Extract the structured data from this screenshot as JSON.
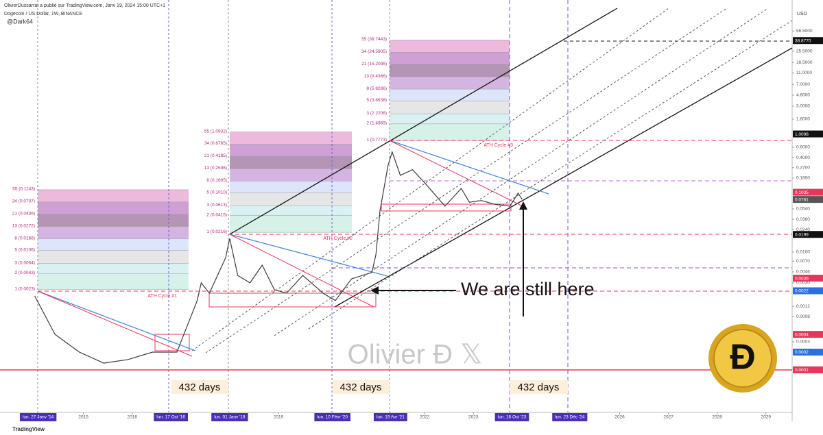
{
  "header": {
    "publisher": "OlivierDussarrat a publié sur TradingView.com, Janv 19, 2024 15:00 UTC+1",
    "author": "@Dark64",
    "footer": "TradingView",
    "watermark": "Olivier Đ 𝕏"
  },
  "chart_data": {
    "type": "line",
    "title": "Dogecoin / US Dollar, 1W, BINANCE",
    "y_unit": "USD",
    "log_scale": true,
    "color": "#3a3a3a",
    "x": [
      "2014-01",
      "2014-06",
      "2014-12",
      "2015-06",
      "2015-12",
      "2016-06",
      "2016-12",
      "2017-05",
      "2017-06",
      "2017-08",
      "2017-12",
      "2018-01",
      "2018-03",
      "2018-06",
      "2018-09",
      "2018-12",
      "2019-03",
      "2019-07",
      "2019-12",
      "2020-03",
      "2020-07",
      "2020-12",
      "2021-01",
      "2021-02",
      "2021-04",
      "2021-05",
      "2021-07",
      "2021-10",
      "2022-01",
      "2022-06",
      "2022-10",
      "2022-12",
      "2023-03",
      "2023-06",
      "2023-10",
      "2023-12",
      "2024-01"
    ],
    "series": [
      {
        "name": "Dogecoin / US Dollar",
        "values": [
          0.0018,
          0.0004,
          0.0002,
          0.00013,
          0.00015,
          0.0002,
          0.0002,
          0.0015,
          0.003,
          0.002,
          0.008,
          0.017,
          0.004,
          0.003,
          0.006,
          0.0023,
          0.002,
          0.004,
          0.002,
          0.0015,
          0.0035,
          0.0045,
          0.009,
          0.05,
          0.3,
          0.5,
          0.2,
          0.25,
          0.15,
          0.06,
          0.12,
          0.07,
          0.075,
          0.065,
          0.06,
          0.1,
          0.0781
        ]
      }
    ],
    "xlim": [
      "2013-04-15",
      "2029-07-15"
    ],
    "xticks": [
      {
        "value": "2014-01-27",
        "label": "lun. 27 Janv '14",
        "highlight": true
      },
      {
        "value": "2015-01-01",
        "label": "2015"
      },
      {
        "value": "2016-01-01",
        "label": "2016"
      },
      {
        "value": "2016-10-17",
        "label": "lun. 17 Oct '16",
        "highlight": true
      },
      {
        "value": "2018-01-01",
        "label": "lun. 01 Janv '18",
        "highlight": true
      },
      {
        "value": "2019-01-01",
        "label": "2019"
      },
      {
        "value": "2020-02-10",
        "label": "lun. 10 Févr '20",
        "highlight": true
      },
      {
        "value": "2021-04-19",
        "label": "lun. 19 Avr '21",
        "highlight": true
      },
      {
        "value": "2022-01-01",
        "label": "2022"
      },
      {
        "value": "2023-01-01",
        "label": "2023"
      },
      {
        "value": "2023-10-16",
        "label": "lun. 16 Oct '23",
        "highlight": true
      },
      {
        "value": "2024-12-23",
        "label": "lun. 23 Déc '24",
        "highlight": true
      },
      {
        "value": "2026-01-01",
        "label": "2026"
      },
      {
        "value": "2027-01-01",
        "label": "2027"
      },
      {
        "value": "2028-01-01",
        "label": "2028"
      },
      {
        "value": "2029-01-01",
        "label": "2029"
      }
    ],
    "ylim": [
      1.75e-05,
      127
    ],
    "yticks": [
      {
        "value": 56.5,
        "label": "56.5000"
      },
      {
        "value": 25.5,
        "label": "25.5000"
      },
      {
        "value": 16.5,
        "label": "16.5000"
      },
      {
        "value": 11,
        "label": "11.0000"
      },
      {
        "value": 7,
        "label": "7.0000"
      },
      {
        "value": 4.6,
        "label": "4.6000"
      },
      {
        "value": 3,
        "label": "3.0000"
      },
      {
        "value": 1.8,
        "label": "1.8000"
      },
      {
        "value": 0.6,
        "label": "0.6000"
      },
      {
        "value": 0.4,
        "label": "0.4000"
      },
      {
        "value": 0.27,
        "label": "0.2700"
      },
      {
        "value": 0.18,
        "label": "0.1800"
      },
      {
        "value": 0.054,
        "label": "0.0540"
      },
      {
        "value": 0.036,
        "label": "0.0360"
      },
      {
        "value": 0.024,
        "label": "0.0240"
      },
      {
        "value": 0.01,
        "label": "0.0100"
      },
      {
        "value": 0.007,
        "label": "0.0070"
      },
      {
        "value": 0.0046,
        "label": "0.0046"
      },
      {
        "value": 0.003,
        "label": "0.0030"
      },
      {
        "value": 0.0012,
        "label": "0.0012"
      },
      {
        "value": 0.0008,
        "label": "0.0008"
      },
      {
        "value": 0.0003,
        "label": "0.0003"
      }
    ],
    "price_tags": [
      {
        "value": 38.877,
        "label": "38.8770",
        "color": "#111111"
      },
      {
        "value": 1.0098,
        "label": "1.0098",
        "color": "#111111"
      },
      {
        "value": 0.1035,
        "label": "0.1035",
        "color": "#e8365a"
      },
      {
        "value": 0.0781,
        "label": "0.0781",
        "color": "#555555"
      },
      {
        "value": 0.0199,
        "label": "0.0199",
        "color": "#111111"
      },
      {
        "value": 0.0036,
        "label": "0.0036",
        "color": "#e8365a"
      },
      {
        "value": 0.0022,
        "label": "0.0022",
        "color": "#2b6fe0"
      },
      {
        "value": 0.0004,
        "label": "0.0004",
        "color": "#e8365a"
      },
      {
        "value": 0.0002,
        "label": "0.0002",
        "color": "#2b6fe0"
      },
      {
        "value": 0.0001,
        "label": "0.0001",
        "color": "#e8365a"
      }
    ],
    "fib_groups": [
      {
        "levels": [
          {
            "value": 0.0023,
            "label": "1 (0.0023)"
          },
          {
            "value": 0.0043,
            "label": "2 (0.0043)"
          },
          {
            "value": 0.0064,
            "label": "3 (0.0064)"
          },
          {
            "value": 0.0106,
            "label": "5 (0.0106)"
          },
          {
            "value": 0.0168,
            "label": "8 (0.0168)"
          },
          {
            "value": 0.0272,
            "label": "13 (0.0272)"
          },
          {
            "value": 0.0436,
            "label": "21 (0.0436)"
          },
          {
            "value": 0.0707,
            "label": "34 (0.0707)"
          },
          {
            "value": 0.1143,
            "label": "55 (0.1143)"
          }
        ]
      },
      {
        "levels": [
          {
            "value": 0.0216,
            "label": "1 (0.0216)"
          },
          {
            "value": 0.0415,
            "label": "2 (0.0415)"
          },
          {
            "value": 0.0613,
            "label": "3 (0.0613)"
          },
          {
            "value": 0.101,
            "label": "5 (0.1010)"
          },
          {
            "value": 0.1605,
            "label": "8 (0.1605)"
          },
          {
            "value": 0.2598,
            "label": "13 (0.2598)"
          },
          {
            "value": 0.4185,
            "label": "21 (0.4185)"
          },
          {
            "value": 0.6765,
            "label": "34 (0.6765)"
          },
          {
            "value": 1.0932,
            "label": "55 (1.0932)"
          }
        ]
      },
      {
        "levels": [
          {
            "value": 0.7773,
            "label": "1 (0.7773)"
          },
          {
            "value": 1.4969,
            "label": "2 (1.4969)"
          },
          {
            "value": 2.2206,
            "label": "3 (2.2206)"
          },
          {
            "value": 3.6638,
            "label": "5 (3.6638)"
          },
          {
            "value": 5.8286,
            "label": "8 (5.8286)"
          },
          {
            "value": 9.4366,
            "label": "13 (9.4366)"
          },
          {
            "value": 15.2095,
            "label": "21 (15.2095)"
          },
          {
            "value": 24.5905,
            "label": "34 (24.5905)"
          },
          {
            "value": 39.7443,
            "label": "55 (39.7443)"
          }
        ]
      }
    ],
    "fib_colors": [
      "#cfeee3",
      "#d3eef2",
      "#e2e2e2",
      "#d7e1fa",
      "#cda8dc",
      "#a883a8",
      "#c58fcc",
      "#eaaed8"
    ],
    "annotations": {
      "ath1": "ATH Cycle #1",
      "ath2": "ATH Cycle #2",
      "ath3": "ATH Cycle #3",
      "here": "We are still here",
      "days": [
        "432 days",
        "432 days",
        "432 days"
      ]
    }
  }
}
